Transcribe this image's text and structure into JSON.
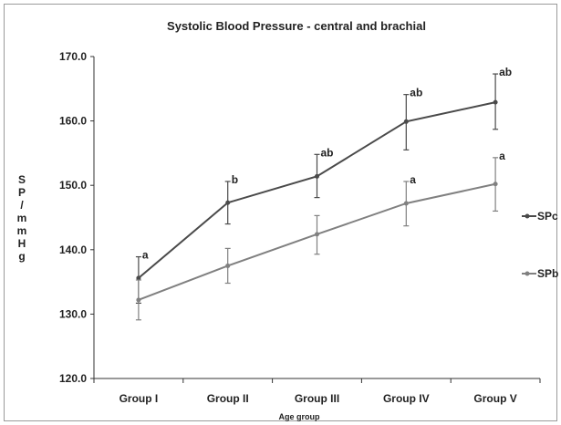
{
  "chart_data": {
    "type": "line",
    "title": "Systolic Blood Pressure - central and brachial",
    "xlabel": "Age group",
    "ylabel": "SP / mmHg",
    "ylabel_glyphs": [
      "S",
      "P",
      "/",
      "m",
      "m",
      "H",
      "g"
    ],
    "categories": [
      "Group I",
      "Group II",
      "Group III",
      "Group IV",
      "Group V"
    ],
    "ylim": [
      120,
      170
    ],
    "yticks": [
      120,
      130,
      140,
      150,
      160,
      170
    ],
    "ytick_labels": [
      "120.0",
      "130.0",
      "140.0",
      "150.0",
      "160.0",
      "170.0"
    ],
    "grid": false,
    "legend": "right",
    "series": [
      {
        "name": "SPc",
        "color": "#4a4a4a",
        "values": [
          135.6,
          147.3,
          151.4,
          159.9,
          162.9
        ],
        "err_low": [
          131.7,
          144.0,
          148.1,
          155.5,
          158.7
        ],
        "err_high": [
          138.9,
          150.6,
          154.8,
          164.1,
          167.3
        ],
        "labels": [
          "a",
          "b",
          "ab",
          "ab",
          "ab"
        ]
      },
      {
        "name": "SPb",
        "color": "#808080",
        "values": [
          132.2,
          137.5,
          142.4,
          147.2,
          150.2
        ],
        "err_low": [
          129.1,
          134.8,
          139.3,
          143.7,
          146.0
        ],
        "err_high": [
          135.3,
          140.2,
          145.3,
          150.6,
          154.3
        ],
        "labels": [
          "",
          "",
          "",
          "a",
          "a"
        ]
      }
    ]
  }
}
